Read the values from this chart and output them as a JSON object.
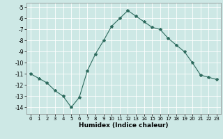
{
  "x": [
    0,
    1,
    2,
    3,
    4,
    5,
    6,
    7,
    8,
    9,
    10,
    11,
    12,
    13,
    14,
    15,
    16,
    17,
    18,
    19,
    20,
    21,
    22,
    23
  ],
  "y": [
    -11,
    -11.4,
    -11.8,
    -12.5,
    -13.0,
    -14.0,
    -13.1,
    -10.7,
    -9.2,
    -8.0,
    -6.7,
    -6.0,
    -5.3,
    -5.8,
    -6.3,
    -6.8,
    -7.0,
    -7.8,
    -8.4,
    -9.0,
    -10.0,
    -11.1,
    -11.3,
    -11.5
  ],
  "line_color": "#2e6b5e",
  "marker": "*",
  "marker_size": 3,
  "bg_color": "#cde8e5",
  "grid_color": "#ffffff",
  "xlabel": "Humidex (Indice chaleur)",
  "xlim": [
    -0.5,
    23.5
  ],
  "ylim": [
    -14.6,
    -4.6
  ],
  "yticks": [
    -5,
    -6,
    -7,
    -8,
    -9,
    -10,
    -11,
    -12,
    -13,
    -14
  ],
  "xticks": [
    0,
    1,
    2,
    3,
    4,
    5,
    6,
    7,
    8,
    9,
    10,
    11,
    12,
    13,
    14,
    15,
    16,
    17,
    18,
    19,
    20,
    21,
    22,
    23
  ]
}
